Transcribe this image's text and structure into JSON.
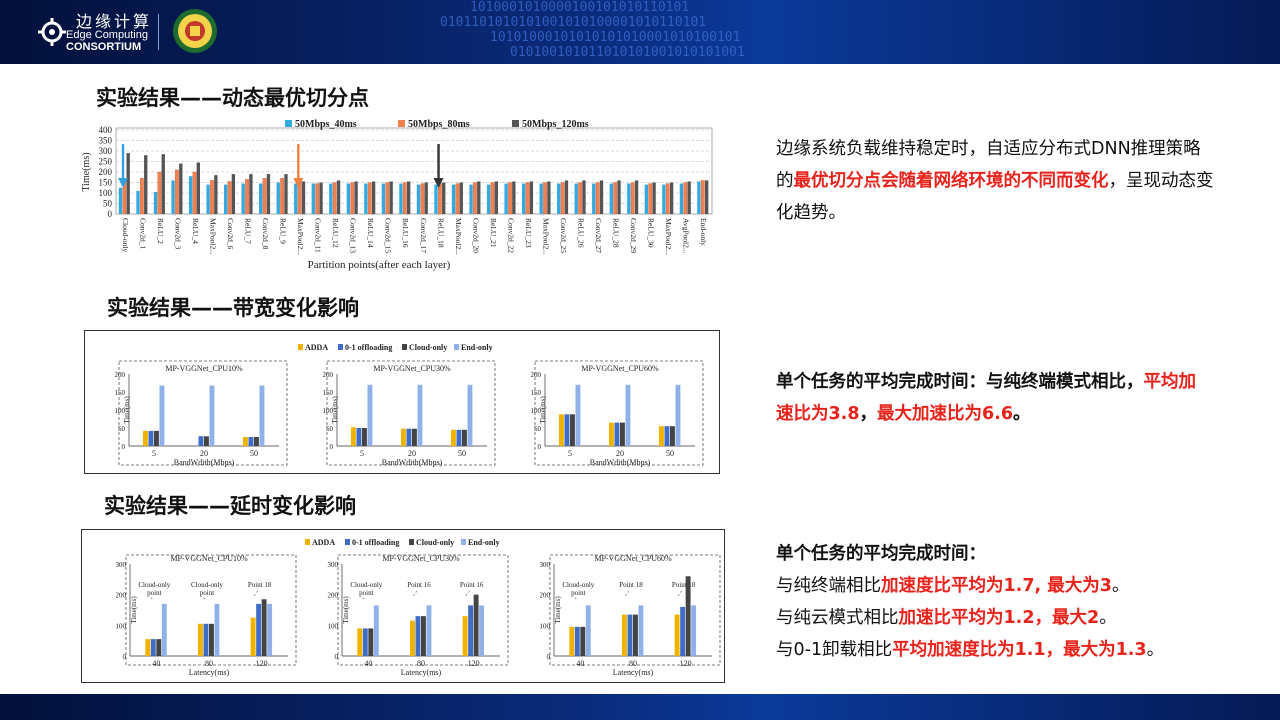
{
  "header": {
    "logo_cn": "边缘计算",
    "logo_en1": "Edge Computing",
    "logo_en2": "CONSORTIUM",
    "binary_lines": [
      "1010001010000100101010110101",
      "0101101010101001010100001010110101",
      "10101000101010101010001010100101",
      "010100101011010101001010101001"
    ]
  },
  "colors": {
    "orange": "#f0b400",
    "blue": "#3f6cc5",
    "dark": "#444",
    "light": "#8fb1e8",
    "red": "#e8231b"
  },
  "sections": {
    "title1": "实验结果——动态最优切分点",
    "title2": "实验结果——带宽变化影响",
    "title3": "实验结果——延时变化影响"
  },
  "right": {
    "p1_a": "边缘系统负载维持稳定时，自适应分布式DNN推理策略的",
    "p1_red": "最优切分点会随着网络环境的不同而变化",
    "p1_b": "，呈现动态变化趋势。",
    "p2_a": "单个任务的平均完成时间：与纯终端模式相比，",
    "p2_red1": "平均加速比为3.8",
    "p2_mid": "，",
    "p2_red2": "最大加速比为6.6",
    "p2_end": "。",
    "p3_l1": "单个任务的平均完成时间：",
    "p3_l2a": "与纯终端相比",
    "p3_l2r": "加速度比平均为1.7, 最大为3",
    "p3_l2e": "。",
    "p3_l3a": "与纯云模式相比",
    "p3_l3r": "加速比平均为1.2，最大2",
    "p3_l3e": "。",
    "p3_l4a": "与0-1卸载相比",
    "p3_l4r": "平均加速度比为1.1，最大为1.3",
    "p3_l4e": "。"
  },
  "chart_data": [
    {
      "type": "bar",
      "title": "",
      "legend": [
        "50Mbps_40ms",
        "50Mbps_80ms",
        "50Mbps_120ms"
      ],
      "legend_position": "top",
      "xlabel": "Partition points(after each layer)",
      "ylabel": "Time(ms)",
      "ylim": [
        0,
        400
      ],
      "yticks": [
        0,
        50,
        100,
        150,
        200,
        250,
        300,
        350,
        400
      ],
      "grid": true,
      "categories": [
        "Cloud-only",
        "Conv2d_1",
        "ReLU_2",
        "Conv2d_3",
        "ReLU_4",
        "MaxPool2...",
        "Conv2d_6",
        "ReLU_7",
        "Conv2d_8",
        "ReLU_9",
        "MaxPool2...",
        "Conv2d_11",
        "ReLU_12",
        "Conv2d_13",
        "ReLU_14",
        "Conv2d_15",
        "ReLU_16",
        "Conv2d_17",
        "ReLU_18",
        "MaxPool2...",
        "Conv2d_20",
        "ReLU_21",
        "Conv2d_22",
        "ReLU_23",
        "MaxPool2...",
        "Conv2d_25",
        "ReLU_26",
        "Conv2d_27",
        "ReLU_28",
        "Conv2d_29",
        "ReLU_30",
        "MaxPool2...",
        "AvgPool2...",
        "End-only"
      ],
      "series": [
        {
          "name": "50Mbps_40ms",
          "values": [
            125,
            110,
            105,
            160,
            180,
            140,
            140,
            145,
            145,
            150,
            145,
            145,
            145,
            145,
            145,
            145,
            145,
            140,
            140,
            140,
            140,
            140,
            145,
            145,
            145,
            145,
            145,
            145,
            145,
            145,
            140,
            140,
            145,
            155
          ]
        },
        {
          "name": "50Mbps_80ms",
          "values": [
            150,
            170,
            200,
            210,
            200,
            160,
            155,
            165,
            170,
            170,
            150,
            145,
            150,
            150,
            150,
            150,
            150,
            145,
            145,
            145,
            150,
            150,
            150,
            150,
            150,
            150,
            150,
            150,
            150,
            150,
            145,
            145,
            150,
            160
          ]
        },
        {
          "name": "50Mbps_120ms",
          "values": [
            290,
            280,
            285,
            240,
            245,
            185,
            190,
            190,
            190,
            190,
            155,
            150,
            160,
            155,
            155,
            155,
            155,
            150,
            150,
            150,
            155,
            155,
            155,
            155,
            155,
            160,
            160,
            160,
            160,
            160,
            150,
            150,
            155,
            160
          ]
        }
      ],
      "annotations": [
        "blue arrow at Cloud-only",
        "orange arrow at MaxPool2d_10",
        "black arrow at Conv2d_18"
      ]
    },
    {
      "type": "bar",
      "legend": [
        "ADDA",
        "0-1 offloading",
        "Cloud-only",
        "End-only"
      ],
      "legend_position": "top",
      "panels": [
        {
          "title": "MP-VGGNet_CPU10%",
          "xlabel": "BandWdith(Mbps)",
          "ylabel": "Time(ms)",
          "ylim": [
            0,
            200
          ],
          "categories": [
            "5",
            "20",
            "50"
          ],
          "series": [
            {
              "name": "ADDA",
              "values": [
                42,
                0,
                25
              ]
            },
            {
              "name": "0-1 offloading",
              "values": [
                42,
                27,
                25
              ]
            },
            {
              "name": "Cloud-only",
              "values": [
                42,
                27,
                25
              ]
            },
            {
              "name": "End-only",
              "values": [
                168,
                168,
                168
              ]
            }
          ]
        },
        {
          "title": "MP-VGGNet_CPU30%",
          "xlabel": "BandWdith(Mbps)",
          "ylabel": "Time(ms)",
          "ylim": [
            0,
            200
          ],
          "categories": [
            "5",
            "20",
            "50"
          ],
          "series": [
            {
              "name": "ADDA",
              "values": [
                52,
                48,
                45
              ]
            },
            {
              "name": "0-1 offloading",
              "values": [
                50,
                48,
                45
              ]
            },
            {
              "name": "Cloud-only",
              "values": [
                50,
                48,
                45
              ]
            },
            {
              "name": "End-only",
              "values": [
                170,
                170,
                170
              ]
            }
          ]
        },
        {
          "title": "MP-VGGNet_CPU60%",
          "xlabel": "BandWdith(Mbps)",
          "ylabel": "Time(ms)",
          "ylim": [
            0,
            200
          ],
          "categories": [
            "5",
            "20",
            "50"
          ],
          "series": [
            {
              "name": "ADDA",
              "values": [
                88,
                65,
                55
              ]
            },
            {
              "name": "0-1 offloading",
              "values": [
                88,
                65,
                55
              ]
            },
            {
              "name": "Cloud-only",
              "values": [
                88,
                65,
                55
              ]
            },
            {
              "name": "End-only",
              "values": [
                170,
                170,
                170
              ]
            }
          ]
        }
      ]
    },
    {
      "type": "bar",
      "legend": [
        "ADDA",
        "0-1 offloading",
        "Cloud-only",
        "End-only"
      ],
      "legend_position": "top",
      "panels": [
        {
          "title": "MP-VGGNet_CPU10%",
          "xlabel": "Latency(ms)",
          "ylabel": "Time(ms)",
          "ylim": [
            0,
            300
          ],
          "categories": [
            "40",
            "80",
            "120"
          ],
          "annotations": [
            "Cloud-only point",
            "Cloud-only point",
            "Point 18"
          ],
          "series": [
            {
              "name": "ADDA",
              "values": [
                55,
                105,
                125
              ]
            },
            {
              "name": "0-1 offloading",
              "values": [
                55,
                105,
                170
              ]
            },
            {
              "name": "Cloud-only",
              "values": [
                55,
                105,
                185
              ]
            },
            {
              "name": "End-only",
              "values": [
                170,
                170,
                170
              ]
            }
          ]
        },
        {
          "title": "MP-VGGNet_CPU30%",
          "xlabel": "Latency(ms)",
          "ylabel": "Time(ms)",
          "ylim": [
            0,
            300
          ],
          "categories": [
            "40",
            "80",
            "120"
          ],
          "annotations": [
            "Cloud-only point",
            "Point 16",
            "Point 16"
          ],
          "series": [
            {
              "name": "ADDA",
              "values": [
                90,
                115,
                130
              ]
            },
            {
              "name": "0-1 offloading",
              "values": [
                90,
                130,
                165
              ]
            },
            {
              "name": "Cloud-only",
              "values": [
                90,
                130,
                200
              ]
            },
            {
              "name": "End-only",
              "values": [
                165,
                165,
                165
              ]
            }
          ]
        },
        {
          "title": "MP-VGGNet_CPU60%",
          "xlabel": "Latency(ms)",
          "ylabel": "Time(ms)",
          "ylim": [
            0,
            300
          ],
          "categories": [
            "40",
            "80",
            "120"
          ],
          "annotations": [
            "Cloud-only point",
            "Point 18",
            "Point 18"
          ],
          "series": [
            {
              "name": "ADDA",
              "values": [
                95,
                135,
                135
              ]
            },
            {
              "name": "0-1 offloading",
              "values": [
                95,
                135,
                160
              ]
            },
            {
              "name": "Cloud-only",
              "values": [
                95,
                135,
                260
              ]
            },
            {
              "name": "End-only",
              "values": [
                165,
                165,
                165
              ]
            }
          ]
        }
      ]
    }
  ]
}
